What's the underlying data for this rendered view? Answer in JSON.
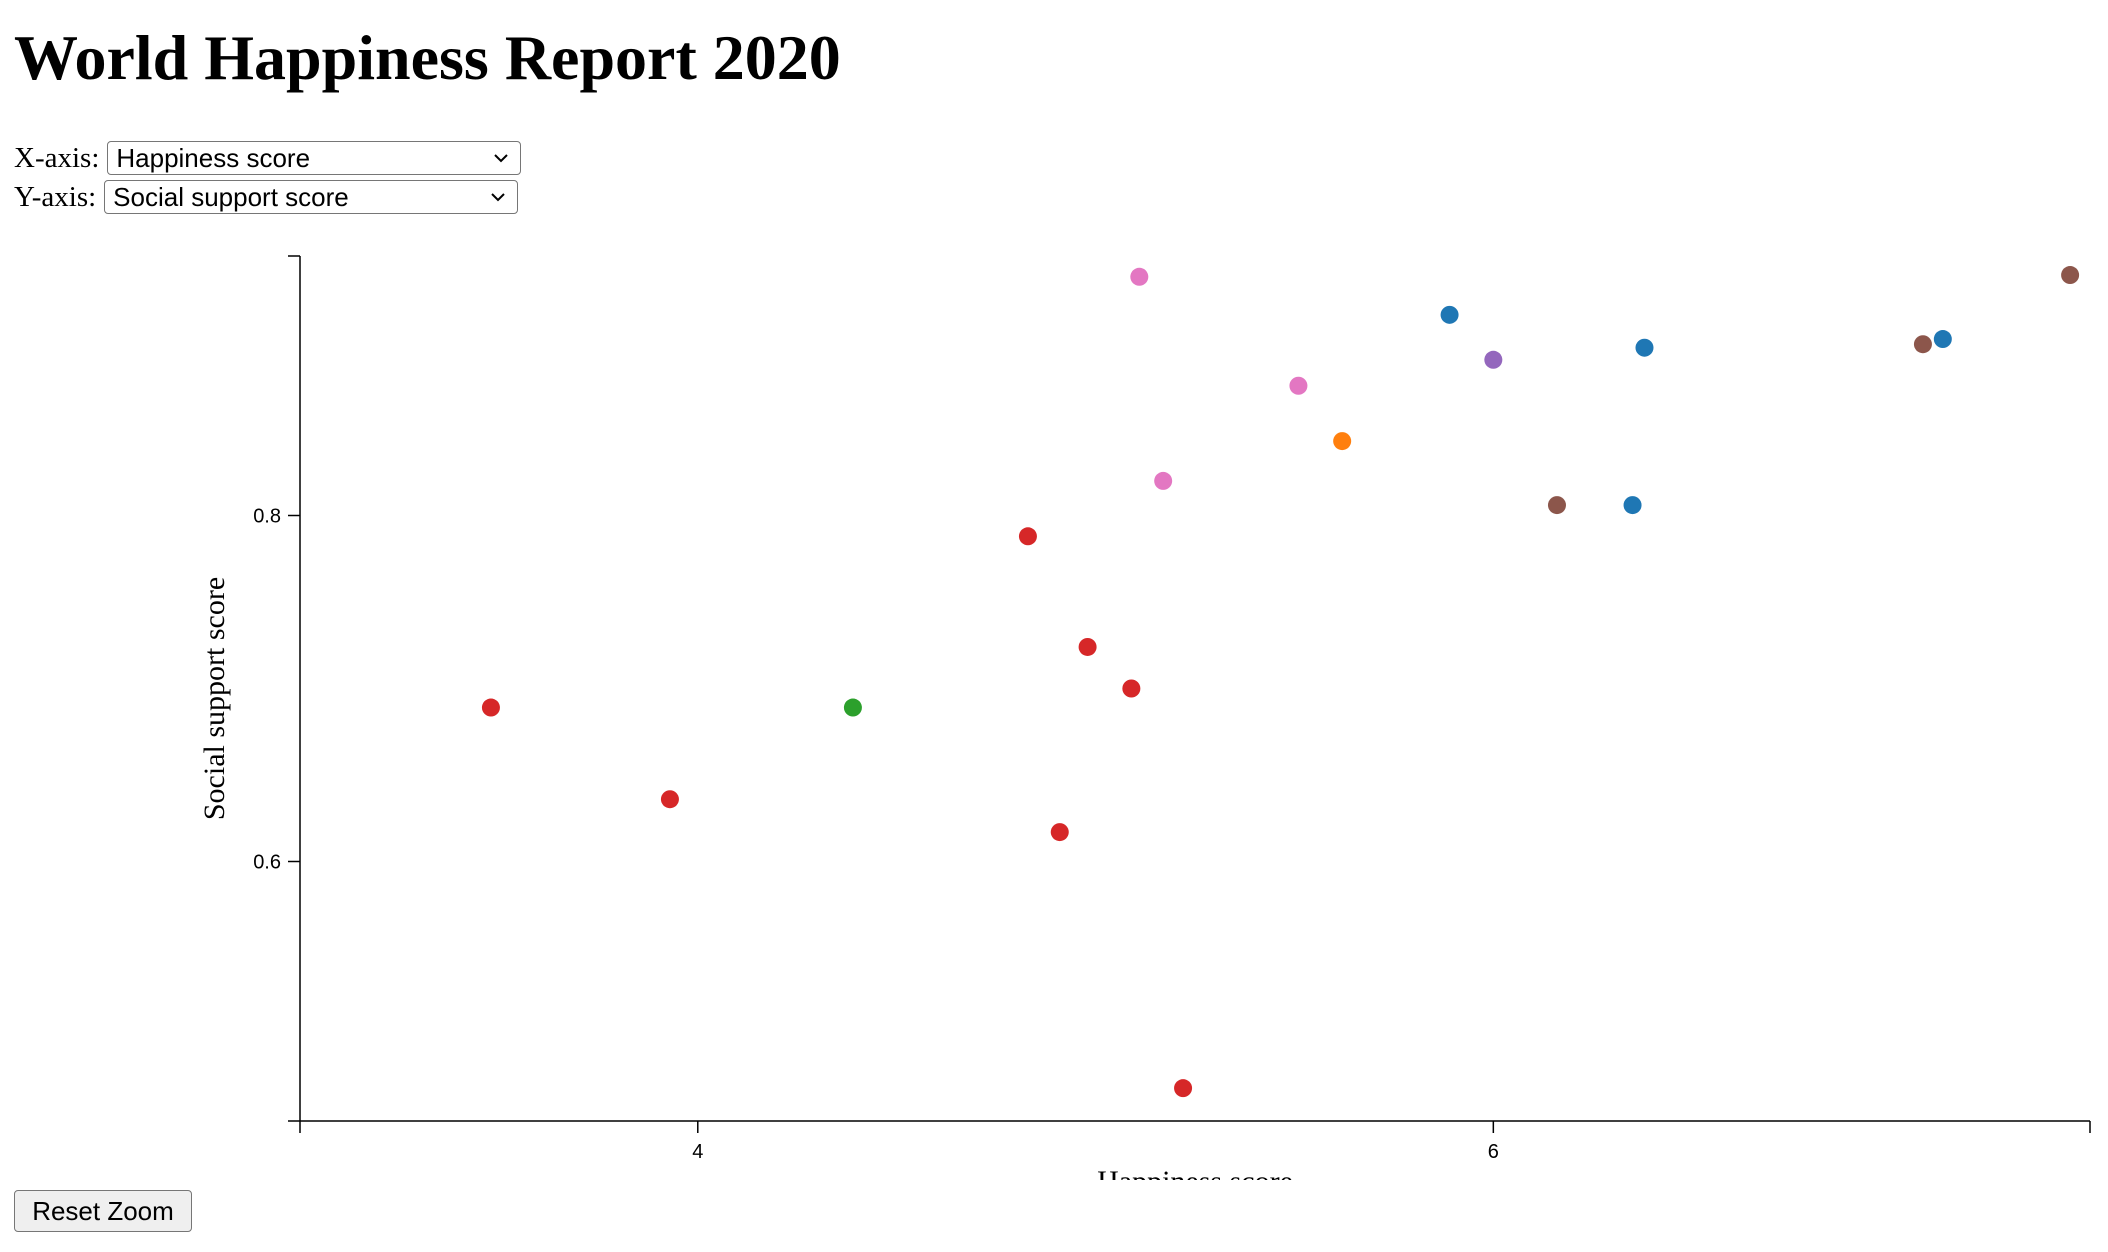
{
  "page": {
    "title": "World Happiness Report 2020"
  },
  "controls": {
    "x_label": "X-axis:",
    "x_selected": "Happiness score",
    "y_label": "Y-axis:",
    "y_selected": "Social support score",
    "reset_label": "Reset Zoom",
    "chevron_icon": "chevron-down-icon"
  },
  "chart_data": {
    "type": "scatter",
    "xlabel": "Happiness score",
    "ylabel": "Social support score",
    "xlim": [
      3.0,
      7.5
    ],
    "ylim": [
      0.45,
      0.95
    ],
    "x_ticks": [
      {
        "value": 4,
        "label": "4"
      },
      {
        "value": 6,
        "label": "6"
      }
    ],
    "y_ticks": [
      {
        "value": 0.6,
        "label": "0.6"
      },
      {
        "value": 0.8,
        "label": "0.8"
      }
    ],
    "grid": false,
    "legend": "none",
    "points": [
      {
        "x": 3.48,
        "y": 0.689,
        "color": "#d62728"
      },
      {
        "x": 3.93,
        "y": 0.636,
        "color": "#d62728"
      },
      {
        "x": 4.39,
        "y": 0.689,
        "color": "#2ca02c"
      },
      {
        "x": 4.83,
        "y": 0.788,
        "color": "#d62728"
      },
      {
        "x": 4.91,
        "y": 0.617,
        "color": "#d62728"
      },
      {
        "x": 4.98,
        "y": 0.724,
        "color": "#d62728"
      },
      {
        "x": 5.09,
        "y": 0.7,
        "color": "#d62728"
      },
      {
        "x": 5.11,
        "y": 0.938,
        "color": "#e377c2"
      },
      {
        "x": 5.17,
        "y": 0.82,
        "color": "#e377c2"
      },
      {
        "x": 5.22,
        "y": 0.469,
        "color": "#d62728"
      },
      {
        "x": 5.51,
        "y": 0.875,
        "color": "#e377c2"
      },
      {
        "x": 5.62,
        "y": 0.843,
        "color": "#ff7f0e"
      },
      {
        "x": 5.89,
        "y": 0.916,
        "color": "#1f77b4"
      },
      {
        "x": 6.0,
        "y": 0.89,
        "color": "#9467bd"
      },
      {
        "x": 6.16,
        "y": 0.806,
        "color": "#8c564b"
      },
      {
        "x": 6.35,
        "y": 0.806,
        "color": "#1f77b4"
      },
      {
        "x": 6.38,
        "y": 0.897,
        "color": "#1f77b4"
      },
      {
        "x": 7.08,
        "y": 0.899,
        "color": "#8c564b"
      },
      {
        "x": 7.13,
        "y": 0.902,
        "color": "#1f77b4"
      },
      {
        "x": 7.45,
        "y": 0.939,
        "color": "#8c564b"
      }
    ]
  }
}
